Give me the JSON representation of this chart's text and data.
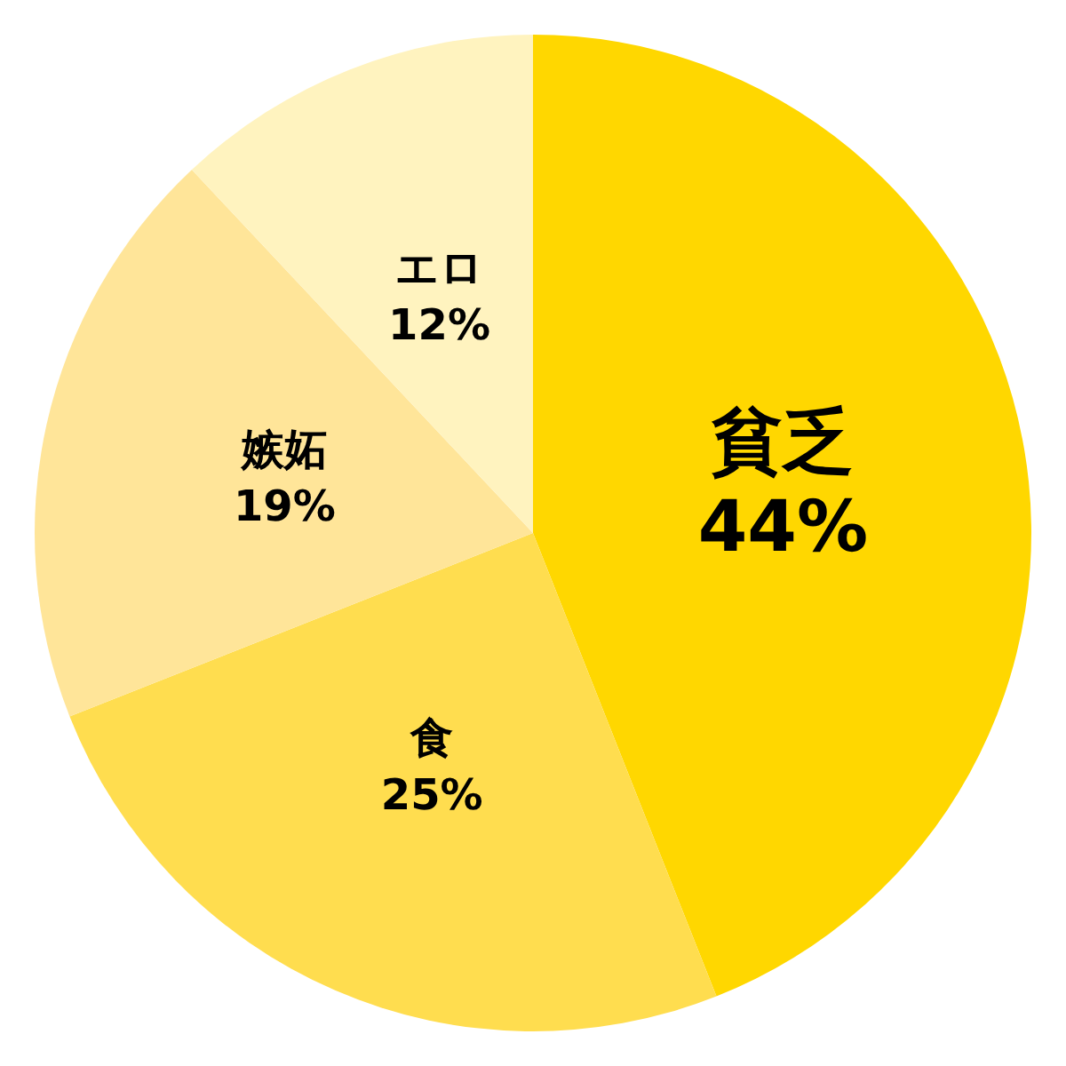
{
  "chart_data": {
    "type": "pie",
    "value_labels": [
      "44%",
      "25%",
      "19%",
      "12%"
    ],
    "categories": [
      "貧乏",
      "食",
      "嫉妬",
      "エロ"
    ],
    "values": [
      44,
      25,
      19,
      12
    ],
    "colors": [
      "#ffd700",
      "#ffdd4f",
      "#ffe599",
      "#fff3bf"
    ]
  }
}
